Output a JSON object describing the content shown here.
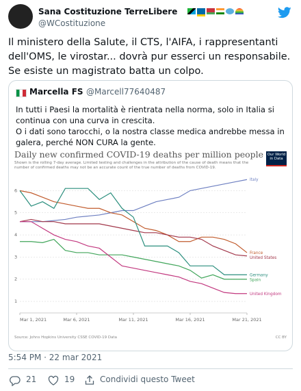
{
  "tweet": {
    "name": "Sana Costituzione TerreLibere",
    "handle": "@WCostituzione",
    "text": "Il ministero della Salute, il CTS, l'AIFA, i rappresentanti dell'OMS, le virostar... dovrà pur esserci un responsabile. Se esiste un magistrato batta un colpo.",
    "timestamp": "5:54 PM · 22 mar 2021",
    "replies": 21,
    "likes": 19,
    "share": "Condividi questo Tweet"
  },
  "quote": {
    "name": "Marcella FS",
    "handle": "@Marcell77640487",
    "paragraphs": [
      "In tutti i Paesi la mortalità è rientrata nella norma, solo in Italia si continua con una curva in crescita.",
      "O i dati sono tarocchi, o la nostra classe medica andrebbe messa in galera, perché NON CURA la gente."
    ]
  },
  "chart_data": {
    "type": "line",
    "title": "Daily new confirmed COVID-19 deaths per million people",
    "subtitle": "Shown is the rolling 7-day average. Limited testing and challenges in the attribution of the cause of death means that the number of confirmed deaths may not be an accurate count of the true number of deaths from COVID-19.",
    "logo": "Our World in Data",
    "source": "Source: Johns Hopkins University CSSE COVID-19 Data",
    "license": "CC BY",
    "x": [
      1,
      2,
      3,
      4,
      5,
      6,
      7,
      8,
      9,
      10,
      11,
      12,
      13,
      14,
      15,
      16,
      17,
      18,
      19,
      20,
      21
    ],
    "xlim": [
      1,
      21
    ],
    "xticks": [
      {
        "value": 1,
        "label": "Mar 1, 2021"
      },
      {
        "value": 6,
        "label": "Mar 6, 2021"
      },
      {
        "value": 11,
        "label": "Mar 11, 2021"
      },
      {
        "value": 16,
        "label": "Mar 16, 2021"
      },
      {
        "value": 21,
        "label": "Mar 21, 2021"
      }
    ],
    "ylim": [
      0.6,
      6.6
    ],
    "yticks": [
      1,
      2,
      3,
      4,
      5,
      6
    ],
    "grid": true,
    "series": [
      {
        "name": "Italy",
        "color": "#6d7fc1",
        "values": [
          4.6,
          4.6,
          4.6,
          4.65,
          4.7,
          4.8,
          4.85,
          4.9,
          5.0,
          5.1,
          5.1,
          5.3,
          5.5,
          5.6,
          5.7,
          6.0,
          6.1,
          6.2,
          6.3,
          6.4,
          6.5
        ]
      },
      {
        "name": "France",
        "color": "#c15b2c",
        "values": [
          6.0,
          5.9,
          5.7,
          5.5,
          5.4,
          5.3,
          5.2,
          5.2,
          5.0,
          4.9,
          4.6,
          4.3,
          4.2,
          4.0,
          3.7,
          3.7,
          3.9,
          3.9,
          3.8,
          3.6,
          3.2
        ]
      },
      {
        "name": "United States",
        "color": "#a2374a",
        "values": [
          4.6,
          4.7,
          4.6,
          4.6,
          4.5,
          4.5,
          4.5,
          4.5,
          4.4,
          4.3,
          4.2,
          4.1,
          4.1,
          4.0,
          3.9,
          3.9,
          3.8,
          3.5,
          3.3,
          3.1,
          3.05
        ]
      },
      {
        "name": "Germany",
        "color": "#2a8e7d",
        "values": [
          6.0,
          5.3,
          5.5,
          5.2,
          6.1,
          6.1,
          6.1,
          5.6,
          5.9,
          5.2,
          4.8,
          3.5,
          3.5,
          3.5,
          3.2,
          2.6,
          2.6,
          2.6,
          2.2,
          2.2,
          2.2
        ]
      },
      {
        "name": "Spain",
        "color": "#40a55a",
        "values": [
          3.7,
          3.7,
          3.65,
          3.8,
          3.3,
          3.2,
          3.2,
          3.1,
          3.1,
          3.1,
          3.0,
          2.9,
          2.8,
          2.7,
          2.6,
          2.4,
          2.05,
          2.2,
          2.0,
          2.0,
          2.0
        ]
      },
      {
        "name": "United Kingdom",
        "color": "#c2387f",
        "values": [
          4.6,
          4.6,
          4.3,
          4.0,
          3.8,
          3.7,
          3.5,
          3.4,
          3.0,
          2.6,
          2.5,
          2.4,
          2.3,
          2.2,
          2.1,
          1.9,
          1.8,
          1.6,
          1.4,
          1.35,
          1.35
        ]
      }
    ]
  }
}
